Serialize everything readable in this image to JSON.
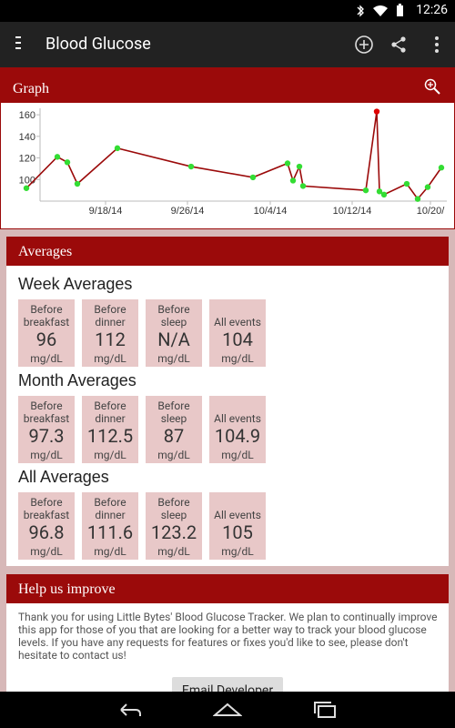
{
  "status_bar": {
    "time": "12:26",
    "icons": [
      "bluetooth-icon",
      "wifi-icon",
      "battery-icon"
    ]
  },
  "app_bar": {
    "title": "Blood Glucose",
    "actions": [
      "add-icon",
      "share-icon",
      "more-vert-icon"
    ]
  },
  "graph_card": {
    "title": "Graph",
    "chart_data": {
      "type": "line",
      "y_ticks": [
        "160",
        "140",
        "120",
        "100"
      ],
      "x_ticks": [
        "9/18/14",
        "9/26/14",
        "10/4/14",
        "10/12/14",
        "10/20/"
      ],
      "ylim": [
        90,
        166
      ],
      "points": [
        {
          "x": "9/11/14",
          "y": 92
        },
        {
          "x": "9/14/14",
          "y": 121
        },
        {
          "x": "9/15/14",
          "y": 116
        },
        {
          "x": "9/16/14",
          "y": 96
        },
        {
          "x": "9/20/14",
          "y": 129
        },
        {
          "x": "9/26/14",
          "y": 112
        },
        {
          "x": "10/2/14",
          "y": 102
        },
        {
          "x": "10/5/14",
          "y": 115
        },
        {
          "x": "10/5/14 12h",
          "y": 99
        },
        {
          "x": "10/6/14",
          "y": 112
        },
        {
          "x": "10/6/14 12h",
          "y": 94
        },
        {
          "x": "10/13/14",
          "y": 90
        },
        {
          "x": "10/14/14",
          "y": 163
        },
        {
          "x": "10/14/14 12h",
          "y": 89
        },
        {
          "x": "10/15/14",
          "y": 86
        },
        {
          "x": "10/17/14",
          "y": 96
        },
        {
          "x": "10/18/14",
          "y": 82
        },
        {
          "x": "10/19/14",
          "y": 93
        },
        {
          "x": "10/20/14",
          "y": 111
        }
      ],
      "line_color": "#9b0a0a",
      "point_color": "#33dd33",
      "highlight_color": "#e00000"
    }
  },
  "averages": {
    "title": "Averages",
    "sections": [
      {
        "title": "Week Averages",
        "tiles": [
          {
            "label1": "Before",
            "label2": "breakfast",
            "value": "96",
            "unit": "mg/dL"
          },
          {
            "label1": "Before",
            "label2": "dinner",
            "value": "112",
            "unit": "mg/dL"
          },
          {
            "label1": "Before",
            "label2": "sleep",
            "value": "N/A",
            "unit": "mg/dL"
          },
          {
            "label1": "",
            "label2": "All events",
            "value": "104",
            "unit": "mg/dL"
          }
        ]
      },
      {
        "title": "Month Averages",
        "tiles": [
          {
            "label1": "Before",
            "label2": "breakfast",
            "value": "97.3",
            "unit": "mg/dL"
          },
          {
            "label1": "Before",
            "label2": "dinner",
            "value": "112.5",
            "unit": "mg/dL"
          },
          {
            "label1": "Before",
            "label2": "sleep",
            "value": "87",
            "unit": "mg/dL"
          },
          {
            "label1": "",
            "label2": "All events",
            "value": "104.9",
            "unit": "mg/dL"
          }
        ]
      },
      {
        "title": "All Averages",
        "tiles": [
          {
            "label1": "Before",
            "label2": "breakfast",
            "value": "96.8",
            "unit": "mg/dL"
          },
          {
            "label1": "Before",
            "label2": "dinner",
            "value": "111.6",
            "unit": "mg/dL"
          },
          {
            "label1": "Before",
            "label2": "sleep",
            "value": "123.2",
            "unit": "mg/dL"
          },
          {
            "label1": "",
            "label2": "All events",
            "value": "105",
            "unit": "mg/dL"
          }
        ]
      }
    ]
  },
  "help": {
    "title": "Help us improve",
    "body": "Thank you for using Little Bytes' Blood Glucose Tracker. We plan to continually improve this app for those of you that are looking for a better way to track your blood glucose levels. If you have any requests for features or fixes you'd like to see, please don't hesitate to contact us!",
    "button_label": "Email Developer"
  },
  "nav_bar": {
    "buttons": [
      "back-icon",
      "home-icon",
      "recents-icon"
    ]
  }
}
